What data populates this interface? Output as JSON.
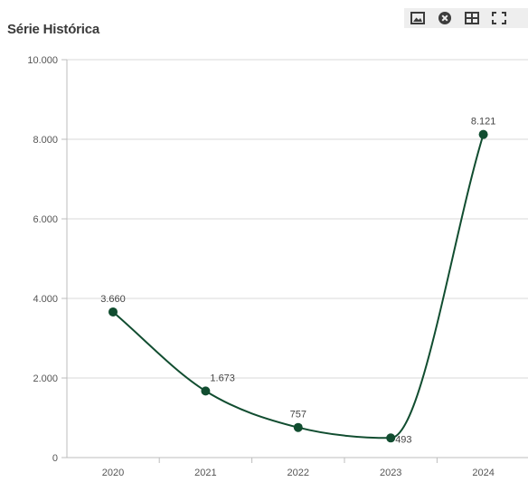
{
  "header": {
    "title": "Série Histórica"
  },
  "toolbar": {
    "buttons": [
      {
        "icon": "image-icon",
        "name": "export-image-button"
      },
      {
        "icon": "close-circle-icon",
        "name": "close-button"
      },
      {
        "icon": "table-icon",
        "name": "data-table-button"
      },
      {
        "icon": "fullscreen-icon",
        "name": "fullscreen-button"
      }
    ],
    "background": "#eeeeee",
    "icon_color": "#3c3c3c"
  },
  "chart_data": {
    "type": "line",
    "title": "Série Histórica",
    "xlabel": "",
    "ylabel": "",
    "categories": [
      "2020",
      "2021",
      "2022",
      "2023",
      "2024"
    ],
    "series": [
      {
        "values": [
          3660,
          1673,
          757,
          493,
          8121
        ],
        "value_labels": [
          "3.660",
          "1.673",
          "757",
          "493",
          "8.121"
        ],
        "color": "#114d30",
        "smooth": true
      }
    ],
    "ylim": [
      0,
      10000
    ],
    "yticks": [
      0,
      2000,
      4000,
      6000,
      8000,
      10000
    ],
    "ytick_labels": [
      "0",
      "2.000",
      "4.000",
      "6.000",
      "8.000",
      "10.000"
    ],
    "grid": true,
    "legend": "none"
  }
}
